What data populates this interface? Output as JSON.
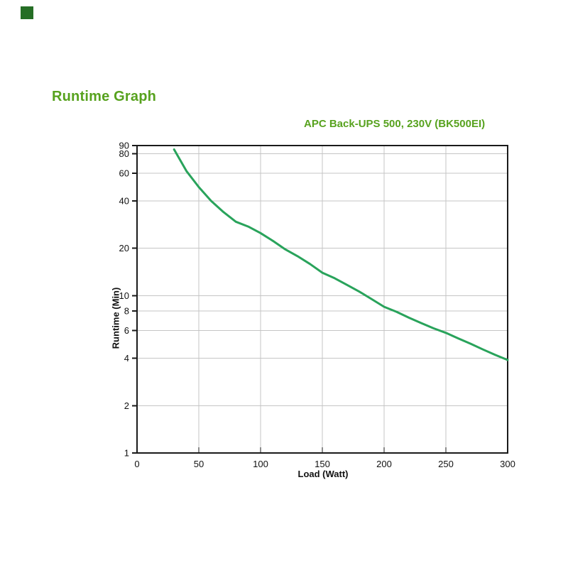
{
  "page": {
    "title": "Runtime Graph",
    "title_color": "#57a21e",
    "corner_marker_color": "#256e25"
  },
  "chart": {
    "subtitle": "APC Back-UPS 500, 230V (BK500EI)",
    "subtitle_color": "#57a21e",
    "xlabel": "Load (Watt)",
    "ylabel": "Runtime (Min)"
  },
  "chart_data": {
    "type": "line",
    "title": "APC Back-UPS 500, 230V (BK500EI)",
    "xlabel": "Load (Watt)",
    "ylabel": "Runtime (Min)",
    "x_scale": "linear",
    "y_scale": "log",
    "xlim": [
      0,
      300
    ],
    "ylim": [
      1,
      90
    ],
    "x_ticks": [
      0,
      50,
      100,
      150,
      200,
      250,
      300
    ],
    "y_ticks": [
      90,
      80,
      60,
      40,
      20,
      10,
      8,
      6,
      4,
      2,
      1
    ],
    "x_gridlines": [
      50,
      100,
      150,
      200,
      250
    ],
    "y_gridlines": [
      80,
      60,
      40,
      20,
      10,
      8,
      6,
      4,
      2
    ],
    "grid": true,
    "legend": false,
    "colors": {
      "grid": "#c5c5c5",
      "axis": "#1a1a1a",
      "tick_text": "#111111"
    },
    "series": [
      {
        "name": "runtime-vs-load",
        "color": "#29a35b",
        "x": [
          30,
          40,
          50,
          60,
          70,
          80,
          90,
          100,
          110,
          120,
          130,
          140,
          150,
          160,
          170,
          180,
          190,
          200,
          210,
          220,
          230,
          240,
          250,
          260,
          270,
          280,
          290,
          300
        ],
        "y": [
          85,
          62,
          49,
          40,
          34,
          29.5,
          27.5,
          25,
          22.3,
          19.7,
          17.8,
          15.9,
          14,
          12.9,
          11.7,
          10.6,
          9.5,
          8.5,
          7.9,
          7.25,
          6.7,
          6.2,
          5.8,
          5.35,
          4.95,
          4.55,
          4.2,
          3.9
        ]
      }
    ]
  }
}
